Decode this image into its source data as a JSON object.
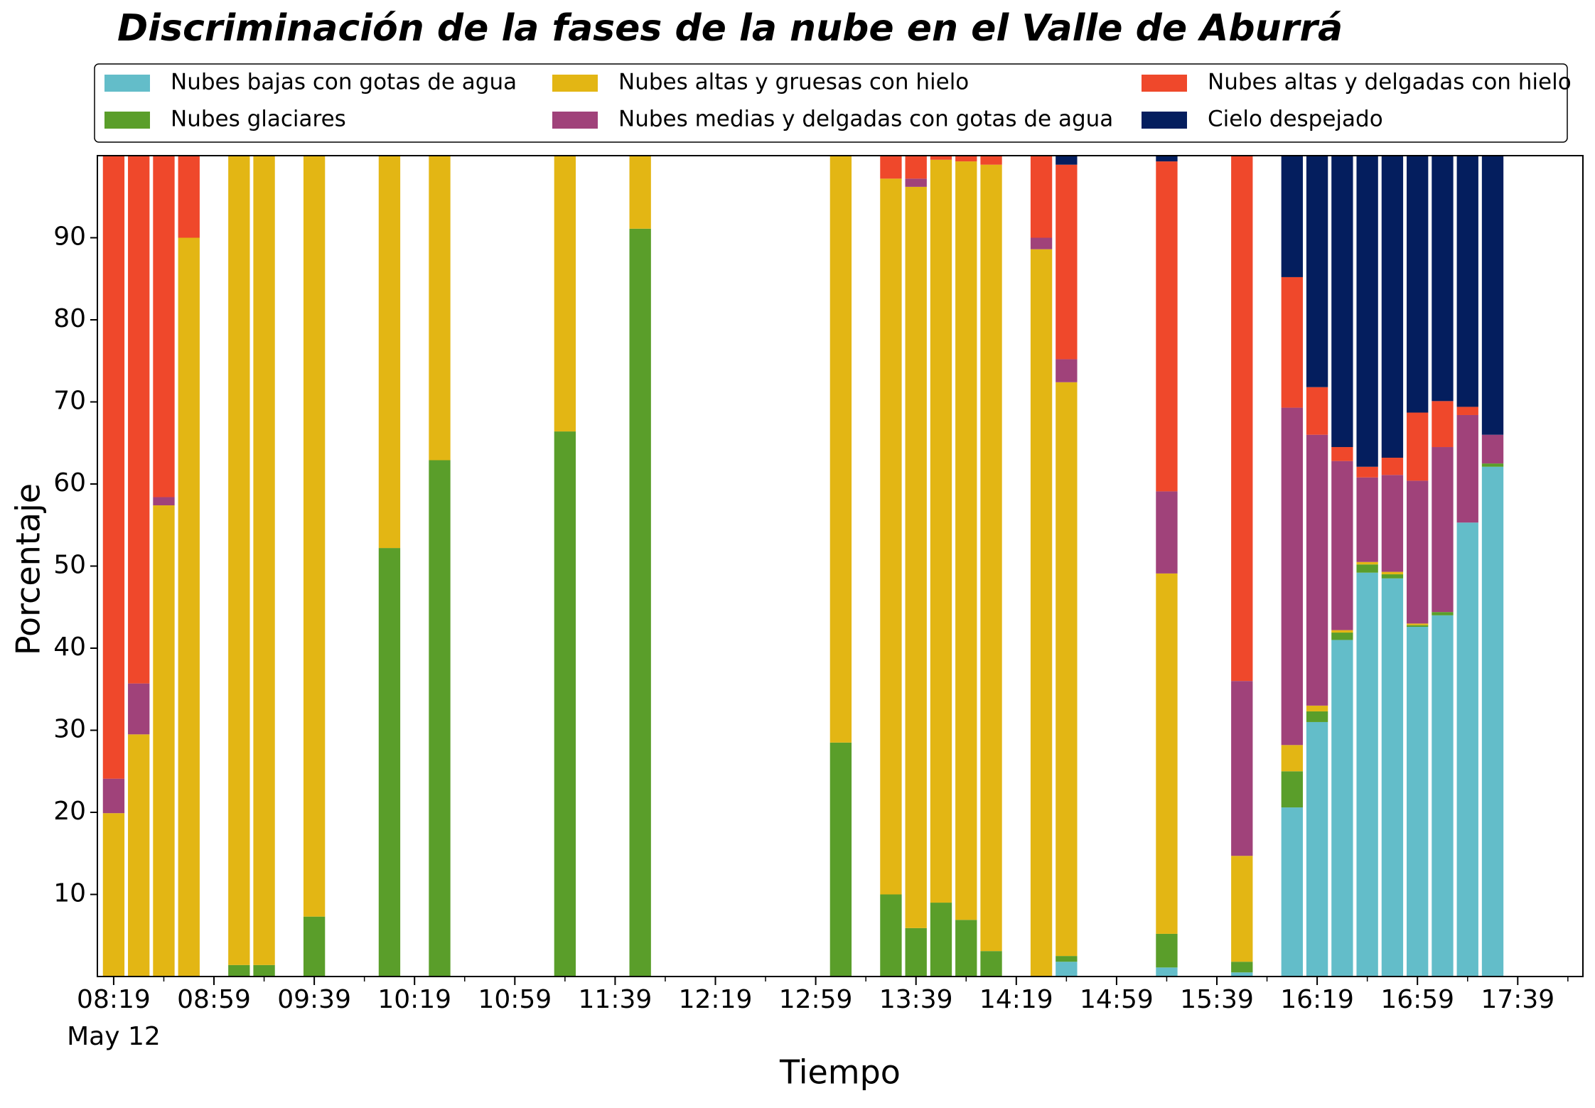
{
  "chart_data": {
    "type": "stacked_bar",
    "title": "Discriminación de la fases de la nube en el Valle de Aburrá",
    "xlabel": "Tiempo",
    "ylabel": "Porcentaje",
    "date_label": "May 12",
    "x": [
      "08:19",
      "08:29",
      "08:39",
      "08:49",
      "09:09",
      "09:19",
      "09:39",
      "10:09",
      "10:29",
      "11:19",
      "11:49",
      "13:09",
      "13:29",
      "13:39",
      "13:49",
      "13:59",
      "14:09",
      "14:29",
      "14:39",
      "15:19",
      "15:49",
      "16:09",
      "16:19",
      "16:29",
      "16:39",
      "16:49",
      "16:59",
      "17:09",
      "17:19",
      "17:29"
    ],
    "xlim": [
      "08:12:30",
      "18:05"
    ],
    "xticks": [
      "08:19",
      "08:59",
      "09:39",
      "10:19",
      "10:59",
      "11:39",
      "12:19",
      "12:59",
      "13:39",
      "14:19",
      "14:59",
      "15:39",
      "16:19",
      "16:59",
      "17:39"
    ],
    "ylim": [
      0,
      100
    ],
    "yticks": [
      10,
      20,
      30,
      40,
      50,
      60,
      70,
      80,
      90
    ],
    "legend": "top",
    "series": [
      {
        "name": "Nubes bajas con gotas de agua",
        "color": "#63bdc9",
        "values": [
          0,
          0,
          0,
          0,
          0,
          0,
          0,
          0,
          0,
          0,
          0,
          0,
          0,
          0,
          0,
          0,
          0,
          0,
          1.8,
          1.1,
          0.5,
          20.6,
          31.0,
          41.0,
          49.2,
          48.5,
          42.6,
          44.0,
          55.3,
          62.1
        ]
      },
      {
        "name": "Nubes glaciares",
        "color": "#5a9e2a",
        "values": [
          0,
          0,
          0,
          0,
          1.4,
          1.4,
          7.3,
          52.2,
          62.9,
          66.4,
          91.1,
          28.5,
          10.0,
          5.9,
          9.0,
          6.9,
          3.1,
          0,
          0.7,
          4.1,
          1.3,
          4.4,
          1.3,
          0.9,
          1.0,
          0.5,
          0.2,
          0.4,
          0,
          0.4
        ]
      },
      {
        "name": "Nubes altas y gruesas con hielo",
        "color": "#e3b614",
        "values": [
          19.9,
          29.5,
          57.4,
          90,
          98.6,
          98.6,
          92.7,
          47.8,
          37.1,
          33.6,
          8.9,
          71.5,
          87.2,
          90.3,
          90.5,
          92.4,
          95.8,
          88.6,
          69.9,
          43.9,
          12.9,
          3.2,
          0.7,
          0.3,
          0.3,
          0.3,
          0.2,
          0,
          0,
          0
        ]
      },
      {
        "name": "Nubes medias y delgadas con gotas de agua",
        "color": "#a0427a",
        "values": [
          4.2,
          6.2,
          1.0,
          0,
          0,
          0,
          0,
          0,
          0,
          0,
          0,
          0,
          0,
          1.0,
          0,
          0,
          0,
          1.4,
          2.8,
          10.0,
          21.3,
          41.1,
          33.0,
          20.6,
          10.3,
          11.8,
          17.4,
          20.1,
          13.1,
          3.5
        ]
      },
      {
        "name": "Nubes altas y delgadas con hielo",
        "color": "#ef482b",
        "values": [
          75.9,
          64.3,
          41.6,
          10,
          0,
          0,
          0,
          0,
          0,
          0,
          0,
          0,
          2.8,
          2.8,
          0.5,
          0.7,
          1.1,
          10.0,
          23.7,
          40.2,
          64.0,
          15.9,
          5.8,
          1.7,
          1.3,
          2.1,
          8.3,
          5.6,
          1.0,
          0
        ]
      },
      {
        "name": "Cielo despejado",
        "color": "#041e5e",
        "values": [
          0,
          0,
          0,
          0,
          0,
          0,
          0,
          0,
          0,
          0,
          0,
          0,
          0,
          0,
          0,
          0,
          0,
          0,
          1.1,
          0.7,
          0,
          14.8,
          28.2,
          35.5,
          37.9,
          36.8,
          31.3,
          29.9,
          30.6,
          34.0
        ]
      }
    ]
  }
}
